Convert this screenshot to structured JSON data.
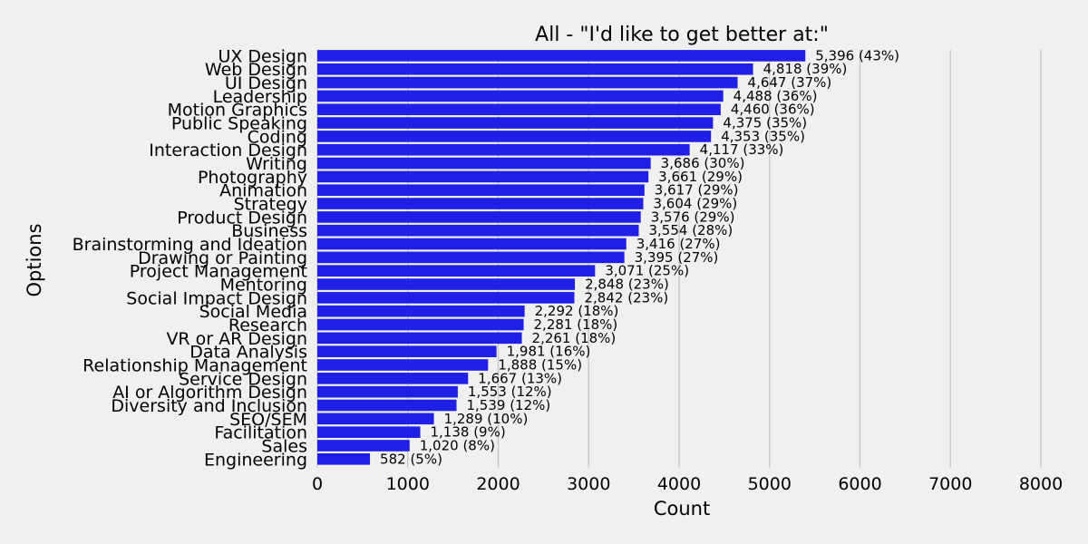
{
  "chart_data": {
    "type": "bar",
    "orientation": "horizontal",
    "title": "All - \"I'd like to get better at:\"",
    "xlabel": "Count",
    "ylabel": "Options",
    "xlim": [
      0,
      8000
    ],
    "xticks": [
      0,
      1000,
      2000,
      3000,
      4000,
      5000,
      6000,
      7000,
      8000
    ],
    "grid": "vertical",
    "bar_color": "#1f1fe5",
    "categories": [
      "UX Design",
      "Web Design",
      "UI Design",
      "Leadership",
      "Motion Graphics",
      "Public Speaking",
      "Coding",
      "Interaction Design",
      "Writing",
      "Photography",
      "Animation",
      "Strategy",
      "Product Design",
      "Business",
      "Brainstorming and Ideation",
      "Drawing or Painting",
      "Project Management",
      "Mentoring",
      "Social Impact Design",
      "Social Media",
      "Research",
      "VR or AR Design",
      "Data Analysis",
      "Relationship Management",
      "Service Design",
      "AI or Algorithm Design",
      "Diversity and Inclusion",
      "SEO/SEM",
      "Facilitation",
      "Sales",
      "Engineering"
    ],
    "values": [
      5396,
      4818,
      4647,
      4488,
      4460,
      4375,
      4353,
      4117,
      3686,
      3661,
      3617,
      3604,
      3576,
      3554,
      3416,
      3395,
      3071,
      2848,
      2842,
      2292,
      2281,
      2261,
      1981,
      1888,
      1667,
      1553,
      1539,
      1289,
      1138,
      1020,
      582
    ],
    "data_labels": [
      "5,396 (43%)",
      "4,818 (39%)",
      "4,647 (37%)",
      "4,488 (36%)",
      "4,460 (36%)",
      "4,375 (35%)",
      "4,353 (35%)",
      "4,117 (33%)",
      "3,686 (30%)",
      "3,661 (29%)",
      "3,617 (29%)",
      "3,604 (29%)",
      "3,576 (29%)",
      "3,554 (28%)",
      "3,416 (27%)",
      "3,395 (27%)",
      "3,071 (25%)",
      "2,848 (23%)",
      "2,842 (23%)",
      "2,292 (18%)",
      "2,281 (18%)",
      "2,261 (18%)",
      "1,981 (16%)",
      "1,888 (15%)",
      "1,667 (13%)",
      "1,553 (12%)",
      "1,539 (12%)",
      "1,289 (10%)",
      "1,138 (9%)",
      "1,020 (8%)",
      "582 (5%)"
    ]
  }
}
